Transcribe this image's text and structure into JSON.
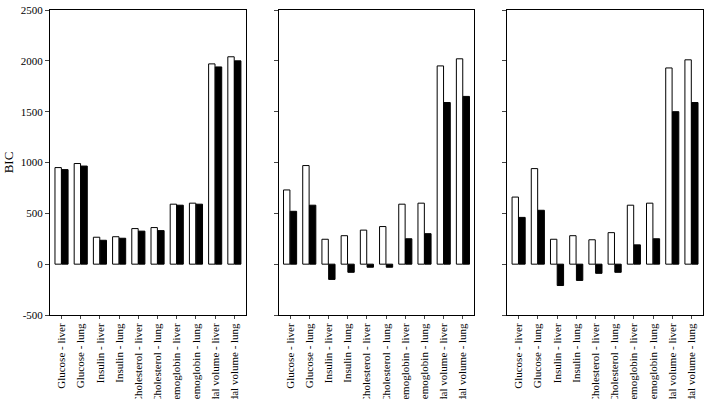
{
  "chart_data": [
    {
      "type": "bar",
      "y_label": "BIC",
      "categories": [
        "Glucose - liver",
        "Glucose - lung",
        "Insulin - liver",
        "Insulin - lung",
        "Cholesterol - liver",
        "Cholesterol - lung",
        "Hemoglobin - liver",
        "Hemoglobin - lung",
        "Tidal volume - liver",
        "Tidal volume - lung"
      ],
      "series": [
        {
          "color": "#ffffff",
          "values": [
            950,
            990,
            265,
            270,
            350,
            360,
            590,
            600,
            1970,
            2040
          ]
        },
        {
          "color": "#000000",
          "values": [
            930,
            965,
            235,
            255,
            325,
            330,
            580,
            590,
            1940,
            2000
          ]
        }
      ],
      "ylim": [
        -500,
        2500
      ],
      "yticks": [
        -500,
        0,
        500,
        1000,
        1500,
        2000,
        2500
      ]
    },
    {
      "type": "bar",
      "tick_labels": "x",
      "categories": [
        "Glucose - liver",
        "Glucose - lung",
        "Insulin - liver",
        "Insulin - lung",
        "Cholesterol - liver",
        "Cholesterol - lung",
        "Hemoglobin - liver",
        "Hemoglobin - lung",
        "Tidal volume - liver",
        "Tidal volume - lung"
      ],
      "series": [
        {
          "color": "#ffffff",
          "values": [
            730,
            970,
            245,
            280,
            335,
            370,
            590,
            600,
            1950,
            2020
          ]
        },
        {
          "color": "#000000",
          "values": [
            520,
            580,
            -150,
            -80,
            -30,
            -30,
            250,
            300,
            1590,
            1650
          ]
        }
      ],
      "ylim": [
        -500,
        2500
      ],
      "yticks": [
        -500,
        0,
        500,
        1000,
        1500,
        2000,
        2500
      ]
    },
    {
      "type": "bar",
      "tick_labels": "x",
      "categories": [
        "Glucose - liver",
        "Glucose - lung",
        "Insulin - liver",
        "Insulin - lung",
        "Cholesterol - liver",
        "Cholesterol - lung",
        "Hemoglobin - liver",
        "Hemoglobin - lung",
        "Tidal volume - liver",
        "Tidal volume - lung"
      ],
      "series": [
        {
          "color": "#ffffff",
          "values": [
            660,
            940,
            245,
            280,
            240,
            310,
            580,
            600,
            1930,
            2010
          ]
        },
        {
          "color": "#000000",
          "values": [
            460,
            530,
            -210,
            -160,
            -90,
            -80,
            190,
            250,
            1500,
            1590
          ]
        }
      ],
      "ylim": [
        -500,
        2500
      ],
      "yticks": [
        -500,
        0,
        500,
        1000,
        1500,
        2000,
        2500
      ]
    }
  ]
}
